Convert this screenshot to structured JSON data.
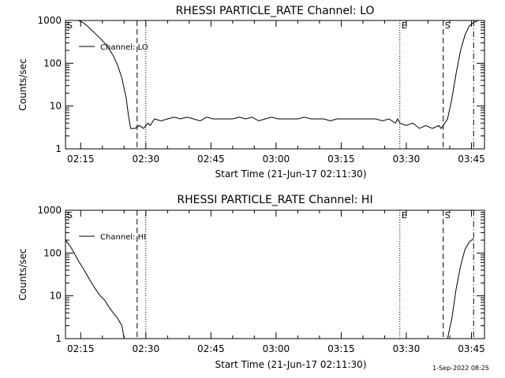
{
  "page": {
    "timestamp": "1-Sep-2022 08:25"
  },
  "chart_data": [
    {
      "type": "line",
      "title": "RHESSI PARTICLE_RATE Channel: LO",
      "xlabel": "Start Time (21-Jun-17 02:11:30)",
      "ylabel": "Counts/sec",
      "yscale": "log",
      "xlim": [
        "02:11:30",
        "03:48:00"
      ],
      "ylim": [
        1,
        1000
      ],
      "xticks": [
        "02:15",
        "02:30",
        "02:45",
        "03:00",
        "03:15",
        "03:30",
        "03:45"
      ],
      "yticks": [
        "1",
        "10",
        "100",
        "1000"
      ],
      "legend": "top-left",
      "series": [
        {
          "name": "Channel: LO",
          "x": [
            "02:11:30",
            "02:12:30",
            "02:13:30",
            "02:14:30",
            "02:15:30",
            "02:16:30",
            "02:17:30",
            "02:18:30",
            "02:19:30",
            "02:20:30",
            "02:21:30",
            "02:22:30",
            "02:23:30",
            "02:24:30",
            "02:25:30",
            "02:26:00",
            "02:26:30",
            "02:27:30",
            "02:28:30",
            "02:29:30",
            "02:30:30",
            "02:31:00",
            "02:32:00",
            "02:33:30",
            "02:35:00",
            "02:36:30",
            "02:38:00",
            "02:39:30",
            "02:41:00",
            "02:42:30",
            "02:44:00",
            "02:45:30",
            "02:47:00",
            "02:48:30",
            "02:50:00",
            "02:51:30",
            "02:53:00",
            "02:54:30",
            "02:56:00",
            "02:57:30",
            "02:59:00",
            "03:00:30",
            "03:02:00",
            "03:03:30",
            "03:05:00",
            "03:06:30",
            "03:08:00",
            "03:09:30",
            "03:11:00",
            "03:12:30",
            "03:14:00",
            "03:15:30",
            "03:17:00",
            "03:18:30",
            "03:20:00",
            "03:21:30",
            "03:23:00",
            "03:24:30",
            "03:26:00",
            "03:27:30",
            "03:28:00",
            "03:28:30",
            "03:30:00",
            "03:31:30",
            "03:33:00",
            "03:34:30",
            "03:36:00",
            "03:37:30",
            "03:38:00",
            "03:38:30",
            "03:39:30",
            "03:40:30",
            "03:41:30",
            "03:42:30",
            "03:43:30",
            "03:44:30",
            "03:45:30",
            "03:46:30"
          ],
          "y": [
            1000,
            1000,
            1000,
            1000,
            900,
            750,
            600,
            480,
            380,
            300,
            220,
            150,
            90,
            45,
            15,
            6,
            3,
            3,
            3.5,
            3,
            4,
            3.5,
            5,
            4.5,
            5,
            5.5,
            5,
            5.5,
            5,
            4.5,
            5.5,
            5,
            5,
            5,
            5,
            5.5,
            5,
            5.5,
            4.5,
            5,
            5.5,
            5,
            5,
            5,
            5,
            5.5,
            5,
            5,
            5,
            4.5,
            5,
            5,
            5,
            5,
            5,
            5,
            5,
            4.5,
            5,
            4,
            5,
            4,
            3.5,
            4,
            3,
            3.5,
            3,
            3.5,
            3,
            3.5,
            5,
            15,
            60,
            200,
            450,
            750,
            900,
            1000
          ]
        }
      ],
      "annotations": [
        {
          "label": "S",
          "x": "02:11:30"
        },
        {
          "label": "",
          "x": "02:28:00",
          "style": "dashed"
        },
        {
          "label": "",
          "x": "02:30:00",
          "style": "dotted"
        },
        {
          "label": "E",
          "x": "03:28:30",
          "style": "dotted"
        },
        {
          "label": "S",
          "x": "03:38:30",
          "style": "dashed"
        },
        {
          "label": "",
          "x": "03:45:30",
          "style": "dash-dot"
        }
      ]
    },
    {
      "type": "line",
      "title": "RHESSI PARTICLE_RATE Channel: HI",
      "xlabel": "Start Time (21-Jun-17 02:11:30)",
      "ylabel": "Counts/sec",
      "yscale": "log",
      "xlim": [
        "02:11:30",
        "03:48:00"
      ],
      "ylim": [
        1,
        1000
      ],
      "xticks": [
        "02:15",
        "02:30",
        "02:45",
        "03:00",
        "03:15",
        "03:30",
        "03:45"
      ],
      "yticks": [
        "1",
        "10",
        "100",
        "1000"
      ],
      "legend": "top-left",
      "series": [
        {
          "name": "Channel: HI",
          "x": [
            "02:11:30",
            "02:12:30",
            "02:13:30",
            "02:14:30",
            "02:15:30",
            "02:16:30",
            "02:17:30",
            "02:18:30",
            "02:19:30",
            "02:20:30",
            "02:21:30",
            "02:22:30",
            "02:23:30",
            "02:24:30",
            "02:25:00"
          ],
          "y": [
            200,
            150,
            100,
            65,
            45,
            30,
            20,
            14,
            10,
            8,
            5.5,
            4,
            3,
            2,
            1
          ]
        },
        {
          "name": "",
          "x": [
            "03:39:30",
            "03:40:30",
            "03:41:30",
            "03:42:30",
            "03:43:30",
            "03:44:30",
            "03:45:30"
          ],
          "y": [
            1,
            3,
            15,
            50,
            120,
            180,
            220
          ]
        }
      ],
      "annotations": [
        {
          "label": "S",
          "x": "02:11:30"
        },
        {
          "label": "",
          "x": "02:28:00",
          "style": "dashed"
        },
        {
          "label": "",
          "x": "02:30:00",
          "style": "dotted"
        },
        {
          "label": "E",
          "x": "03:28:30",
          "style": "dotted"
        },
        {
          "label": "S",
          "x": "03:38:30",
          "style": "dashed"
        },
        {
          "label": "",
          "x": "03:45:30",
          "style": "dash-dot"
        }
      ]
    }
  ]
}
